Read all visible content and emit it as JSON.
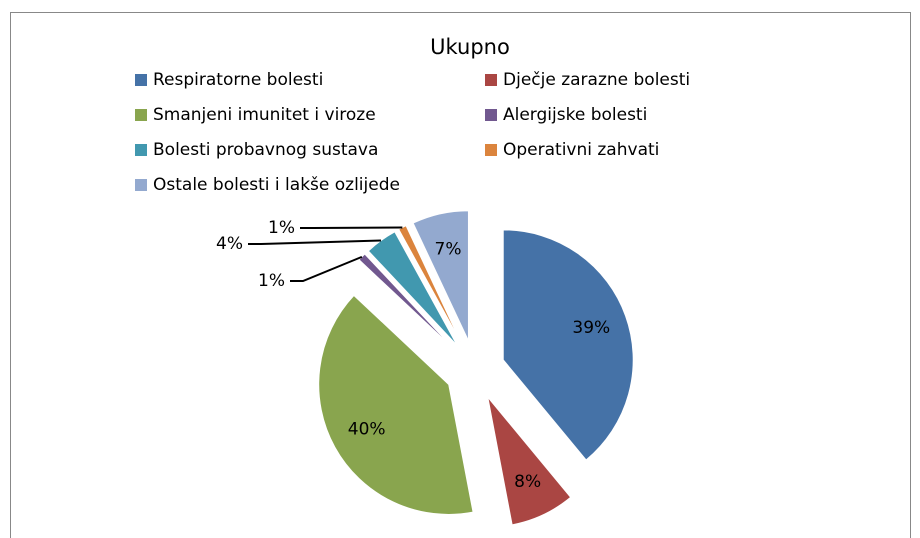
{
  "chart_data": {
    "type": "pie",
    "title": "Ukupno",
    "categories": [
      "Respiratorne bolesti",
      "Dječje zarazne bolesti",
      "Smanjeni imunitet i viroze",
      "Alergijske bolesti",
      "Bolesti probavnog sustava",
      "Operativni zahvati",
      "Ostale bolesti i lakše ozlijede"
    ],
    "values": [
      39,
      8,
      40,
      1,
      4,
      1,
      7
    ],
    "value_labels": [
      "39%",
      "8%",
      "40%",
      "1%",
      "4%",
      "1%",
      "7%"
    ],
    "colors": [
      "#4572a7",
      "#aa4643",
      "#89a54e",
      "#71588f",
      "#4198af",
      "#db843d",
      "#93a9cf"
    ],
    "legend": "top"
  }
}
